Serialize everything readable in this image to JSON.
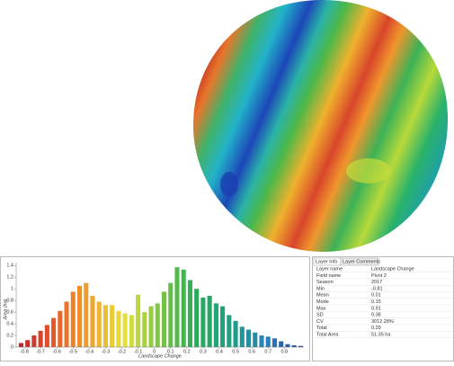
{
  "chart_data": {
    "type": "histogram",
    "x_label": "Landscape Change",
    "y_label": "Area (ha)",
    "bins": [
      -0.84,
      -0.8,
      -0.76,
      -0.72,
      -0.68,
      -0.64,
      -0.6,
      -0.56,
      -0.52,
      -0.48,
      -0.44,
      -0.4,
      -0.36,
      -0.32,
      -0.28,
      -0.24,
      -0.2,
      -0.16,
      -0.12,
      -0.08,
      -0.04,
      0,
      0.04,
      0.08,
      0.12,
      0.16,
      0.2,
      0.24,
      0.28,
      0.32,
      0.36,
      0.4,
      0.44,
      0.48,
      0.52,
      0.56,
      0.6,
      0.64,
      0.68,
      0.72,
      0.76,
      0.8,
      0.84,
      0.88,
      0.92
    ],
    "values": [
      0.07,
      0.12,
      0.2,
      0.28,
      0.38,
      0.5,
      0.62,
      0.78,
      0.95,
      1.05,
      1.1,
      0.88,
      0.78,
      0.72,
      0.72,
      0.62,
      0.58,
      0.55,
      0.9,
      0.6,
      0.7,
      0.75,
      0.95,
      1.1,
      1.37,
      1.33,
      1.15,
      1.0,
      0.85,
      0.88,
      0.75,
      0.7,
      0.55,
      0.45,
      0.35,
      0.3,
      0.25,
      0.2,
      0.18,
      0.15,
      0.1,
      0.05,
      0.03,
      0.02
    ],
    "colormap": [
      "#b8202a",
      "#e4562a",
      "#f0a02c",
      "#e8e23c",
      "#7cc443",
      "#28ac58",
      "#1f9e86",
      "#2a7fc0",
      "#1f3f8f"
    ],
    "xlim": [
      -0.85,
      0.92
    ],
    "ylim": [
      0,
      1.45
    ],
    "xticks": [
      -0.8,
      -0.7,
      -0.6,
      -0.5,
      -0.4,
      -0.3,
      -0.2,
      -0.1,
      0,
      0.1,
      0.2,
      0.3,
      0.4,
      0.5,
      0.6,
      0.7,
      0.8
    ],
    "yticks": [
      0,
      0.2,
      0.4,
      0.6,
      0.8,
      1,
      1.2,
      1.4
    ]
  },
  "layer_info": {
    "tabs": [
      "Layer Info",
      "Layer Comments"
    ],
    "rows": [
      [
        "Layer name",
        "Landscape Change"
      ],
      [
        "Field name",
        "Pivot 2"
      ],
      [
        "Season",
        "2017"
      ],
      [
        "Min",
        "-0.81"
      ],
      [
        "Mean",
        "0.01"
      ],
      [
        "Mode",
        "0.15"
      ],
      [
        "Max",
        "0.91"
      ],
      [
        "SD",
        "0.38"
      ],
      [
        "CV",
        "3012.28%"
      ],
      [
        "Total",
        "0.29"
      ],
      [
        "Total Area",
        "51.35 ha"
      ]
    ]
  }
}
